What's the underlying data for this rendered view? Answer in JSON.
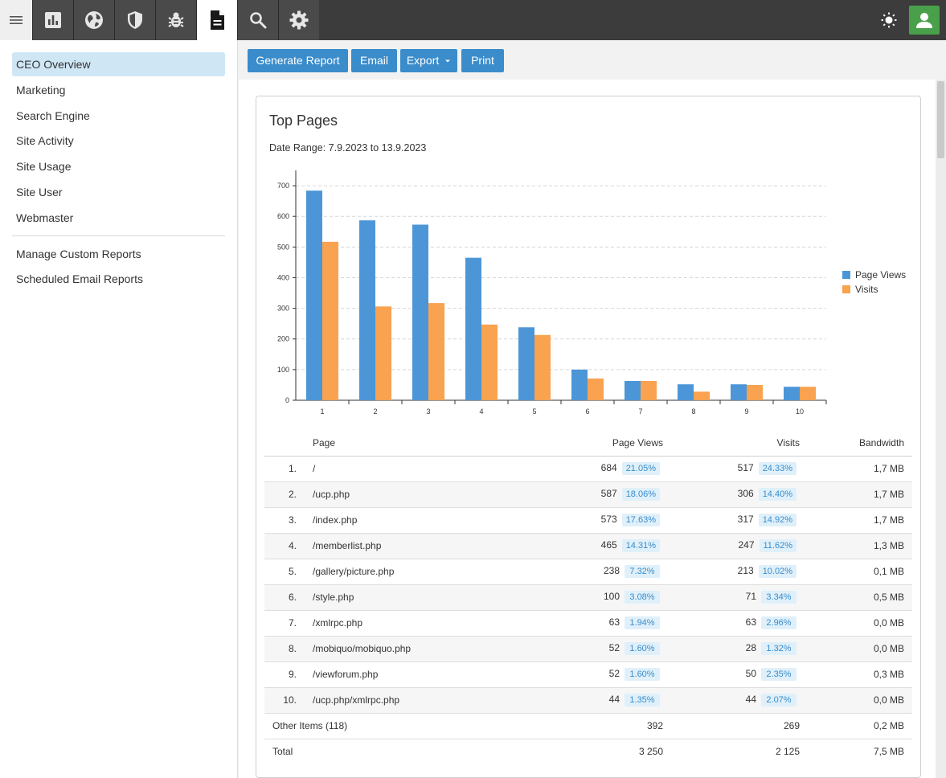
{
  "topbar": {
    "nav_icons": [
      "bar-chart-icon",
      "globe-icon",
      "shield-icon",
      "bug-icon",
      "document-icon",
      "search-icon",
      "gear-icon"
    ],
    "active": "document-icon"
  },
  "sidebar": {
    "items": [
      {
        "label": "CEO Overview",
        "active": true
      },
      {
        "label": "Marketing"
      },
      {
        "label": "Search Engine"
      },
      {
        "label": "Site Activity"
      },
      {
        "label": "Site Usage"
      },
      {
        "label": "Site User"
      },
      {
        "label": "Webmaster"
      }
    ],
    "secondary": [
      {
        "label": "Manage Custom Reports"
      },
      {
        "label": "Scheduled Email Reports"
      }
    ]
  },
  "toolbar": {
    "generate_label": "Generate Report",
    "email_label": "Email",
    "export_label": "Export",
    "print_label": "Print"
  },
  "report": {
    "title": "Top Pages",
    "date_range": "Date Range: 7.9.2023 to 13.9.2023"
  },
  "chart_data": {
    "type": "bar",
    "categories": [
      "1",
      "2",
      "3",
      "4",
      "5",
      "6",
      "7",
      "8",
      "9",
      "10"
    ],
    "series": [
      {
        "name": "Page Views",
        "color": "#4c96d7",
        "values": [
          684,
          587,
          573,
          465,
          238,
          100,
          63,
          52,
          52,
          44
        ]
      },
      {
        "name": "Visits",
        "color": "#f9a24f",
        "values": [
          517,
          306,
          317,
          247,
          213,
          71,
          63,
          28,
          50,
          44
        ]
      }
    ],
    "y_ticks": [
      0,
      100,
      200,
      300,
      400,
      500,
      600,
      700
    ],
    "ylim": [
      0,
      750
    ],
    "grid": true,
    "legend": "right"
  },
  "table": {
    "headers": {
      "page": "Page",
      "page_views": "Page Views",
      "visits": "Visits",
      "bandwidth": "Bandwidth"
    },
    "rows": [
      {
        "rank": "1.",
        "page": "/",
        "views": "684",
        "views_pct": "21.05%",
        "visits": "517",
        "visits_pct": "24.33%",
        "bw": "1,7 MB"
      },
      {
        "rank": "2.",
        "page": "/ucp.php",
        "views": "587",
        "views_pct": "18.06%",
        "visits": "306",
        "visits_pct": "14.40%",
        "bw": "1,7 MB"
      },
      {
        "rank": "3.",
        "page": "/index.php",
        "views": "573",
        "views_pct": "17.63%",
        "visits": "317",
        "visits_pct": "14.92%",
        "bw": "1,7 MB"
      },
      {
        "rank": "4.",
        "page": "/memberlist.php",
        "views": "465",
        "views_pct": "14.31%",
        "visits": "247",
        "visits_pct": "11.62%",
        "bw": "1,3 MB"
      },
      {
        "rank": "5.",
        "page": "/gallery/picture.php",
        "views": "238",
        "views_pct": "7.32%",
        "visits": "213",
        "visits_pct": "10.02%",
        "bw": "0,1 MB"
      },
      {
        "rank": "6.",
        "page": "/style.php",
        "views": "100",
        "views_pct": "3.08%",
        "visits": "71",
        "visits_pct": "3.34%",
        "bw": "0,5 MB"
      },
      {
        "rank": "7.",
        "page": "/xmlrpc.php",
        "views": "63",
        "views_pct": "1.94%",
        "visits": "63",
        "visits_pct": "2.96%",
        "bw": "0,0 MB"
      },
      {
        "rank": "8.",
        "page": "/mobiquo/mobiquo.php",
        "views": "52",
        "views_pct": "1.60%",
        "visits": "28",
        "visits_pct": "1.32%",
        "bw": "0,0 MB"
      },
      {
        "rank": "9.",
        "page": "/viewforum.php",
        "views": "52",
        "views_pct": "1.60%",
        "visits": "50",
        "visits_pct": "2.35%",
        "bw": "0,3 MB"
      },
      {
        "rank": "10.",
        "page": "/ucp.php/xmlrpc.php",
        "views": "44",
        "views_pct": "1.35%",
        "visits": "44",
        "visits_pct": "2.07%",
        "bw": "0,0 MB"
      }
    ],
    "other": {
      "label": "Other Items (118)",
      "views": "392",
      "visits": "269",
      "bw": "0,2 MB"
    },
    "total": {
      "label": "Total",
      "views": "3 250",
      "visits": "2 125",
      "bw": "7,5 MB"
    }
  }
}
